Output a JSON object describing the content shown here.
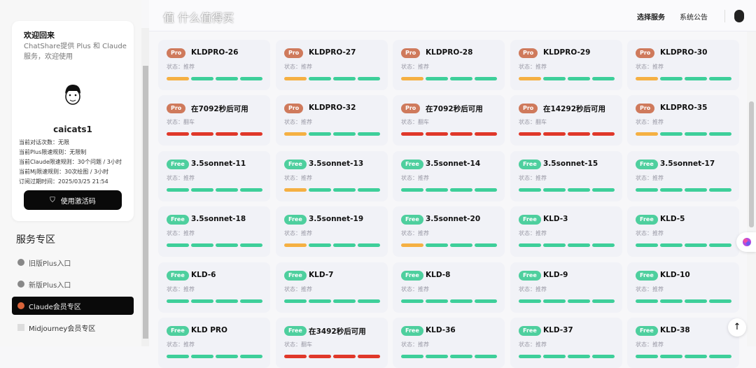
{
  "header": {
    "nav": [
      "选择服务",
      "系统公告"
    ]
  },
  "user_card": {
    "welcome": "欢迎回来",
    "subtitle": "ChatShare提供 Plus 和 Claude 服务，欢迎使用",
    "username": "caicats1",
    "info": [
      "当前对话次数：无限",
      "当前Plus限速规则：无限制",
      "当前Claude限速规则：30个问题 / 3小时",
      "当前Mj限速规则：30次绘图 / 3小时",
      "订阅过期时间：2025/03/25 21:54"
    ],
    "code_button": "使用激活码"
  },
  "sidebar": {
    "section_title": "服务专区",
    "items": [
      {
        "label": "旧版Plus入口",
        "active": false
      },
      {
        "label": "新版Plus入口",
        "active": false
      },
      {
        "label": "Claude会员专区",
        "active": true
      },
      {
        "label": "Midjourney会员专区",
        "active": false
      }
    ]
  },
  "colors": {
    "orange": "#f5b043",
    "green": "#3ecf9a",
    "red": "#e0382a",
    "pro": "#cf7a5c",
    "free": "#4ecf9e"
  },
  "status_prefix": "状态：",
  "cards": [
    {
      "tier": "Pro",
      "name": "KLDPRO-26",
      "status": "推荐",
      "bars": "oggg"
    },
    {
      "tier": "Pro",
      "name": "KLDPRO-27",
      "status": "推荐",
      "bars": "oggg"
    },
    {
      "tier": "Pro",
      "name": "KLDPRO-28",
      "status": "推荐",
      "bars": "oggg"
    },
    {
      "tier": "Pro",
      "name": "KLDPRO-29",
      "status": "推荐",
      "bars": "oggg"
    },
    {
      "tier": "Pro",
      "name": "KLDPRO-30",
      "status": "推荐",
      "bars": "oggg"
    },
    {
      "tier": "Pro",
      "name": "在7092秒后可用",
      "status": "翻车",
      "bars": "rrrr"
    },
    {
      "tier": "Pro",
      "name": "KLDPRO-32",
      "status": "推荐",
      "bars": "oggg"
    },
    {
      "tier": "Pro",
      "name": "在7092秒后可用",
      "status": "翻车",
      "bars": "rrrr"
    },
    {
      "tier": "Pro",
      "name": "在14292秒后可用",
      "status": "翻车",
      "bars": "rrrr"
    },
    {
      "tier": "Pro",
      "name": "KLDPRO-35",
      "status": "推荐",
      "bars": "oggg"
    },
    {
      "tier": "Free",
      "name": "3.5sonnet-11",
      "status": "推荐",
      "bars": "gggg"
    },
    {
      "tier": "Free",
      "name": "3.5sonnet-13",
      "status": "推荐",
      "bars": "oggg"
    },
    {
      "tier": "Free",
      "name": "3.5sonnet-14",
      "status": "推荐",
      "bars": "gggg"
    },
    {
      "tier": "Free",
      "name": "3.5sonnet-15",
      "status": "推荐",
      "bars": "gggg"
    },
    {
      "tier": "Free",
      "name": "3.5sonnet-17",
      "status": "推荐",
      "bars": "gggg"
    },
    {
      "tier": "Free",
      "name": "3.5sonnet-18",
      "status": "推荐",
      "bars": "gggg"
    },
    {
      "tier": "Free",
      "name": "3.5sonnet-19",
      "status": "推荐",
      "bars": "oggg"
    },
    {
      "tier": "Free",
      "name": "3.5sonnet-20",
      "status": "推荐",
      "bars": "oggg"
    },
    {
      "tier": "Free",
      "name": "KLD-3",
      "status": "推荐",
      "bars": "gggg"
    },
    {
      "tier": "Free",
      "name": "KLD-5",
      "status": "推荐",
      "bars": "gggg"
    },
    {
      "tier": "Free",
      "name": "KLD-6",
      "status": "推荐",
      "bars": "gggg"
    },
    {
      "tier": "Free",
      "name": "KLD-7",
      "status": "推荐",
      "bars": "gggg"
    },
    {
      "tier": "Free",
      "name": "KLD-8",
      "status": "推荐",
      "bars": "gggg"
    },
    {
      "tier": "Free",
      "name": "KLD-9",
      "status": "推荐",
      "bars": "gggg"
    },
    {
      "tier": "Free",
      "name": "KLD-10",
      "status": "推荐",
      "bars": "gggg"
    },
    {
      "tier": "Free",
      "name": "KLD PRO",
      "status": "推荐",
      "bars": "gggg"
    },
    {
      "tier": "Free",
      "name": "在3492秒后可用",
      "status": "翻车",
      "bars": "rrrr"
    },
    {
      "tier": "Free",
      "name": "KLD-36",
      "status": "推荐",
      "bars": "gggg"
    },
    {
      "tier": "Free",
      "name": "KLD-37",
      "status": "推荐",
      "bars": "gggg"
    },
    {
      "tier": "Free",
      "name": "KLD-38",
      "status": "推荐",
      "bars": "gggg"
    }
  ],
  "watermark": "值 什么值得买"
}
